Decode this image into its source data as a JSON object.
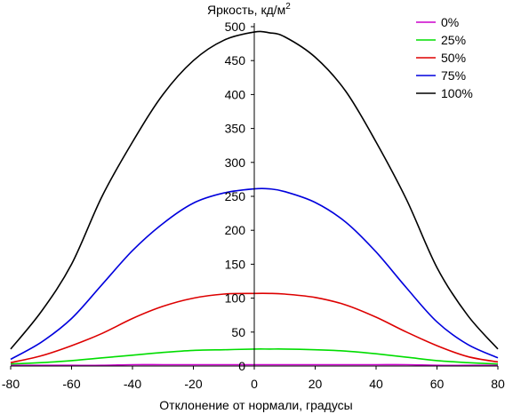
{
  "chart_data": {
    "type": "line",
    "title": "",
    "ylabel": "Яркость, кд/м",
    "ylabel_sup": "2",
    "xlabel": "Отклонение от нормали, градусы",
    "xlim": [
      -80,
      80
    ],
    "ylim": [
      0,
      500
    ],
    "x_ticks": [
      "-80",
      "-60",
      "-40",
      "-20",
      "0",
      "20",
      "40",
      "60",
      "80"
    ],
    "y_ticks": [
      "0",
      "50",
      "100",
      "150",
      "200",
      "250",
      "300",
      "350",
      "400",
      "450",
      "500"
    ],
    "grid": false,
    "legend_position": "top-right",
    "x": [
      -80,
      -70,
      -60,
      -50,
      -40,
      -30,
      -20,
      -10,
      0,
      5,
      10,
      20,
      30,
      40,
      50,
      60,
      70,
      80
    ],
    "series": [
      {
        "name": "0%",
        "color": "#cc00cc",
        "values": [
          1,
          1,
          1,
          1,
          2,
          2,
          2,
          2,
          2,
          2,
          2,
          2,
          2,
          2,
          2,
          1,
          1,
          1
        ]
      },
      {
        "name": "25%",
        "color": "#00dd00",
        "values": [
          3,
          5,
          8,
          12,
          16,
          20,
          23,
          24,
          25,
          25,
          25,
          24,
          22,
          18,
          13,
          8,
          5,
          3
        ]
      },
      {
        "name": "50%",
        "color": "#dd0000",
        "values": [
          5,
          15,
          30,
          48,
          70,
          88,
          100,
          106,
          107,
          107,
          106,
          101,
          90,
          72,
          50,
          30,
          14,
          6
        ]
      },
      {
        "name": "75%",
        "color": "#0000dd",
        "values": [
          10,
          35,
          70,
          120,
          170,
          210,
          240,
          255,
          261,
          261,
          257,
          241,
          212,
          168,
          115,
          65,
          32,
          12
        ]
      },
      {
        "name": "100%",
        "color": "#000000",
        "values": [
          25,
          80,
          150,
          250,
          330,
          400,
          450,
          480,
          492,
          491,
          485,
          455,
          405,
          330,
          245,
          145,
          75,
          25
        ]
      }
    ]
  }
}
